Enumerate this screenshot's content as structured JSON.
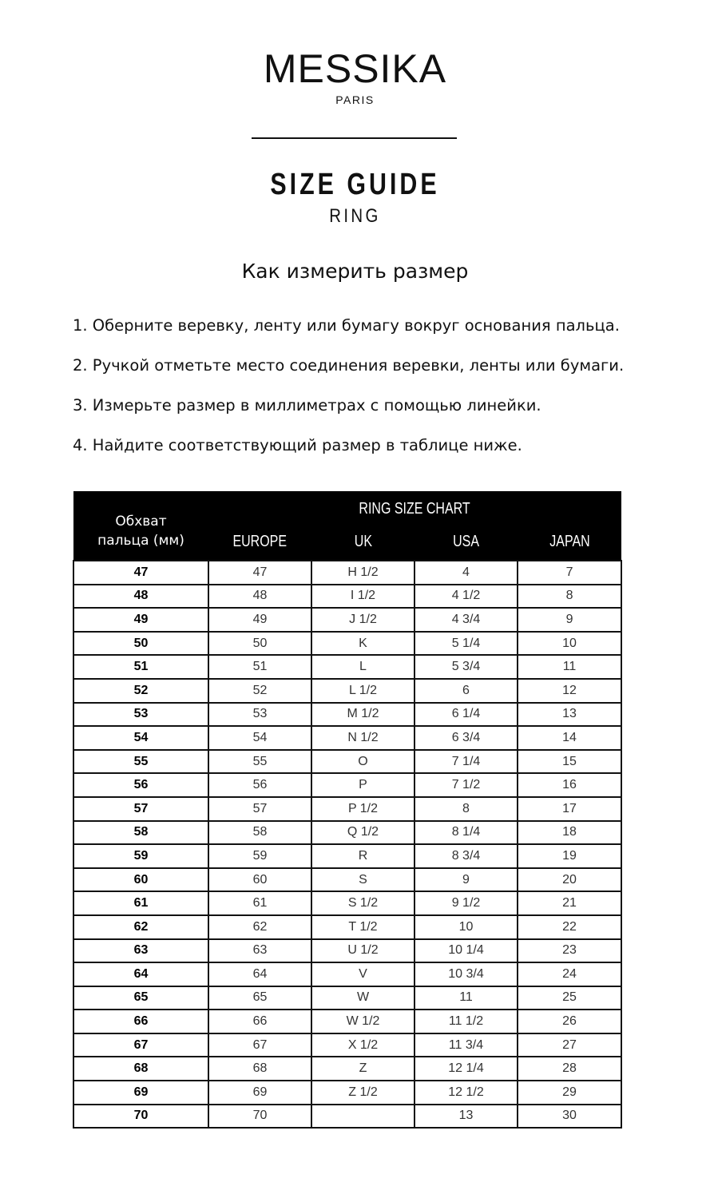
{
  "brand": {
    "logo": "MESSIKA",
    "sub": "PARIS"
  },
  "title": "SIZE GUIDE",
  "subtitle": "RING",
  "how_heading": "Как измерить размер",
  "steps": [
    "1. Оберните веревку, ленту или бумагу вокруг основания пальца.",
    "2. Ручкой отметьте место соединения веревки, ленты или бумаги.",
    "3. Измерьте размер в миллиметрах с помощью линейки.",
    "4. Найдите соответствующий размер в таблице ниже."
  ],
  "table": {
    "first_header": "Обхват пальца (мм)",
    "group_header": "RING SIZE CHART",
    "columns": [
      "EUROPE",
      "UK",
      "USA",
      "JAPAN"
    ],
    "rows": [
      [
        "47",
        "47",
        "H 1/2",
        "4",
        "7"
      ],
      [
        "48",
        "48",
        "I 1/2",
        "4 1/2",
        "8"
      ],
      [
        "49",
        "49",
        "J 1/2",
        "4 3/4",
        "9"
      ],
      [
        "50",
        "50",
        "K",
        "5 1/4",
        "10"
      ],
      [
        "51",
        "51",
        "L",
        "5 3/4",
        "11"
      ],
      [
        "52",
        "52",
        "L 1/2",
        "6",
        "12"
      ],
      [
        "53",
        "53",
        "M 1/2",
        "6 1/4",
        "13"
      ],
      [
        "54",
        "54",
        "N 1/2",
        "6 3/4",
        "14"
      ],
      [
        "55",
        "55",
        "O",
        "7 1/4",
        "15"
      ],
      [
        "56",
        "56",
        "P",
        "7 1/2",
        "16"
      ],
      [
        "57",
        "57",
        "P 1/2",
        "8",
        "17"
      ],
      [
        "58",
        "58",
        "Q 1/2",
        "8 1/4",
        "18"
      ],
      [
        "59",
        "59",
        "R",
        "8 3/4",
        "19"
      ],
      [
        "60",
        "60",
        "S",
        "9",
        "20"
      ],
      [
        "61",
        "61",
        "S 1/2",
        "9 1/2",
        "21"
      ],
      [
        "62",
        "62",
        "T 1/2",
        "10",
        "22"
      ],
      [
        "63",
        "63",
        "U 1/2",
        "10 1/4",
        "23"
      ],
      [
        "64",
        "64",
        "V",
        "10 3/4",
        "24"
      ],
      [
        "65",
        "65",
        "W",
        "11",
        "25"
      ],
      [
        "66",
        "66",
        "W 1/2",
        "11 1/2",
        "26"
      ],
      [
        "67",
        "67",
        "X 1/2",
        "11 3/4",
        "27"
      ],
      [
        "68",
        "68",
        "Z",
        "12 1/4",
        "28"
      ],
      [
        "69",
        "69",
        "Z 1/2",
        "12 1/2",
        "29"
      ],
      [
        "70",
        "70",
        "",
        "13",
        "30"
      ]
    ]
  }
}
